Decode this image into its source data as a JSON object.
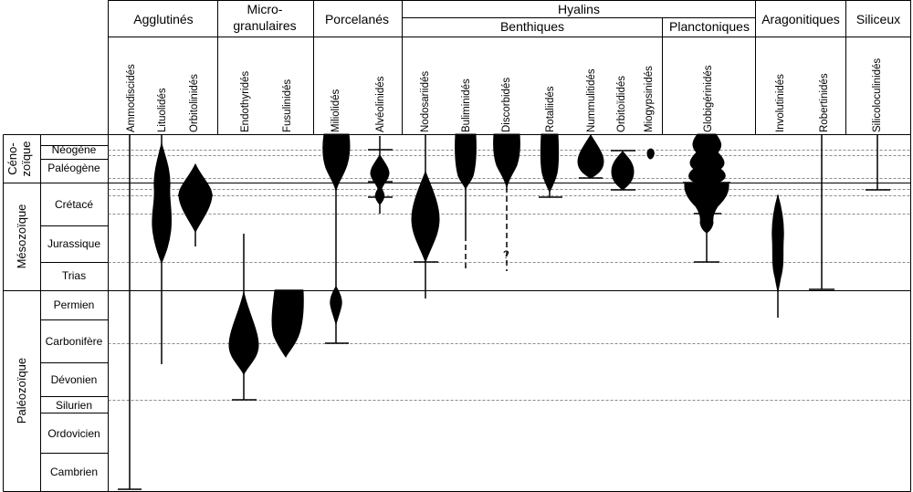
{
  "groups": [
    {
      "label": "Agglutinés",
      "lines": [
        "Agglutinés"
      ]
    },
    {
      "label": "Microgranulaires",
      "lines": [
        "Micro-",
        "granulaires"
      ]
    },
    {
      "label": "Porcelanés",
      "lines": [
        "Porcelanés"
      ]
    },
    {
      "label": "Hyalins",
      "lines": [
        "Hyalins"
      ]
    },
    {
      "label": "Aragonitiques",
      "lines": [
        "Aragonitiques"
      ]
    },
    {
      "label": "Siliceux",
      "lines": [
        "Siliceux"
      ]
    }
  ],
  "subgroups": [
    {
      "label": "Benthiques"
    },
    {
      "label": "Planctoniques"
    }
  ],
  "taxa": [
    {
      "name": "Ammodiscidés"
    },
    {
      "name": "Lituolidés"
    },
    {
      "name": "Orbitolinidés"
    },
    {
      "name": "Endothyridés"
    },
    {
      "name": "Fusulinidés"
    },
    {
      "name": "Miliolidés"
    },
    {
      "name": "Alvéolinidés"
    },
    {
      "name": "Nodosariidés"
    },
    {
      "name": "Buliminidés"
    },
    {
      "name": "Discorbidés"
    },
    {
      "name": "Rotaliidés"
    },
    {
      "name": "Nummulitidés"
    },
    {
      "name": "Orbitoïdidés"
    },
    {
      "name": "Miogypsinidés"
    },
    {
      "name": "Globigérinidés"
    },
    {
      "name": "Involutinidés"
    },
    {
      "name": "Robertinidés"
    },
    {
      "name": "Silicoloculinidés"
    }
  ],
  "eras": [
    {
      "lines": [
        "Céno-",
        "zoïque"
      ]
    },
    {
      "lines": [
        "Mésozoïque"
      ]
    },
    {
      "lines": [
        "Paléozoïque"
      ]
    }
  ],
  "periods": [
    {
      "name": "Néogène"
    },
    {
      "name": "Paléogène"
    },
    {
      "name": "Crétacé"
    },
    {
      "name": "Jurassique"
    },
    {
      "name": "Trias"
    },
    {
      "name": "Permien"
    },
    {
      "name": "Carbonifère"
    },
    {
      "name": "Dévonien"
    },
    {
      "name": "Silurien"
    },
    {
      "name": "Ordovicien"
    },
    {
      "name": "Cambrien"
    }
  ],
  "annotations": {
    "discorbid_uncertain": "?"
  }
}
